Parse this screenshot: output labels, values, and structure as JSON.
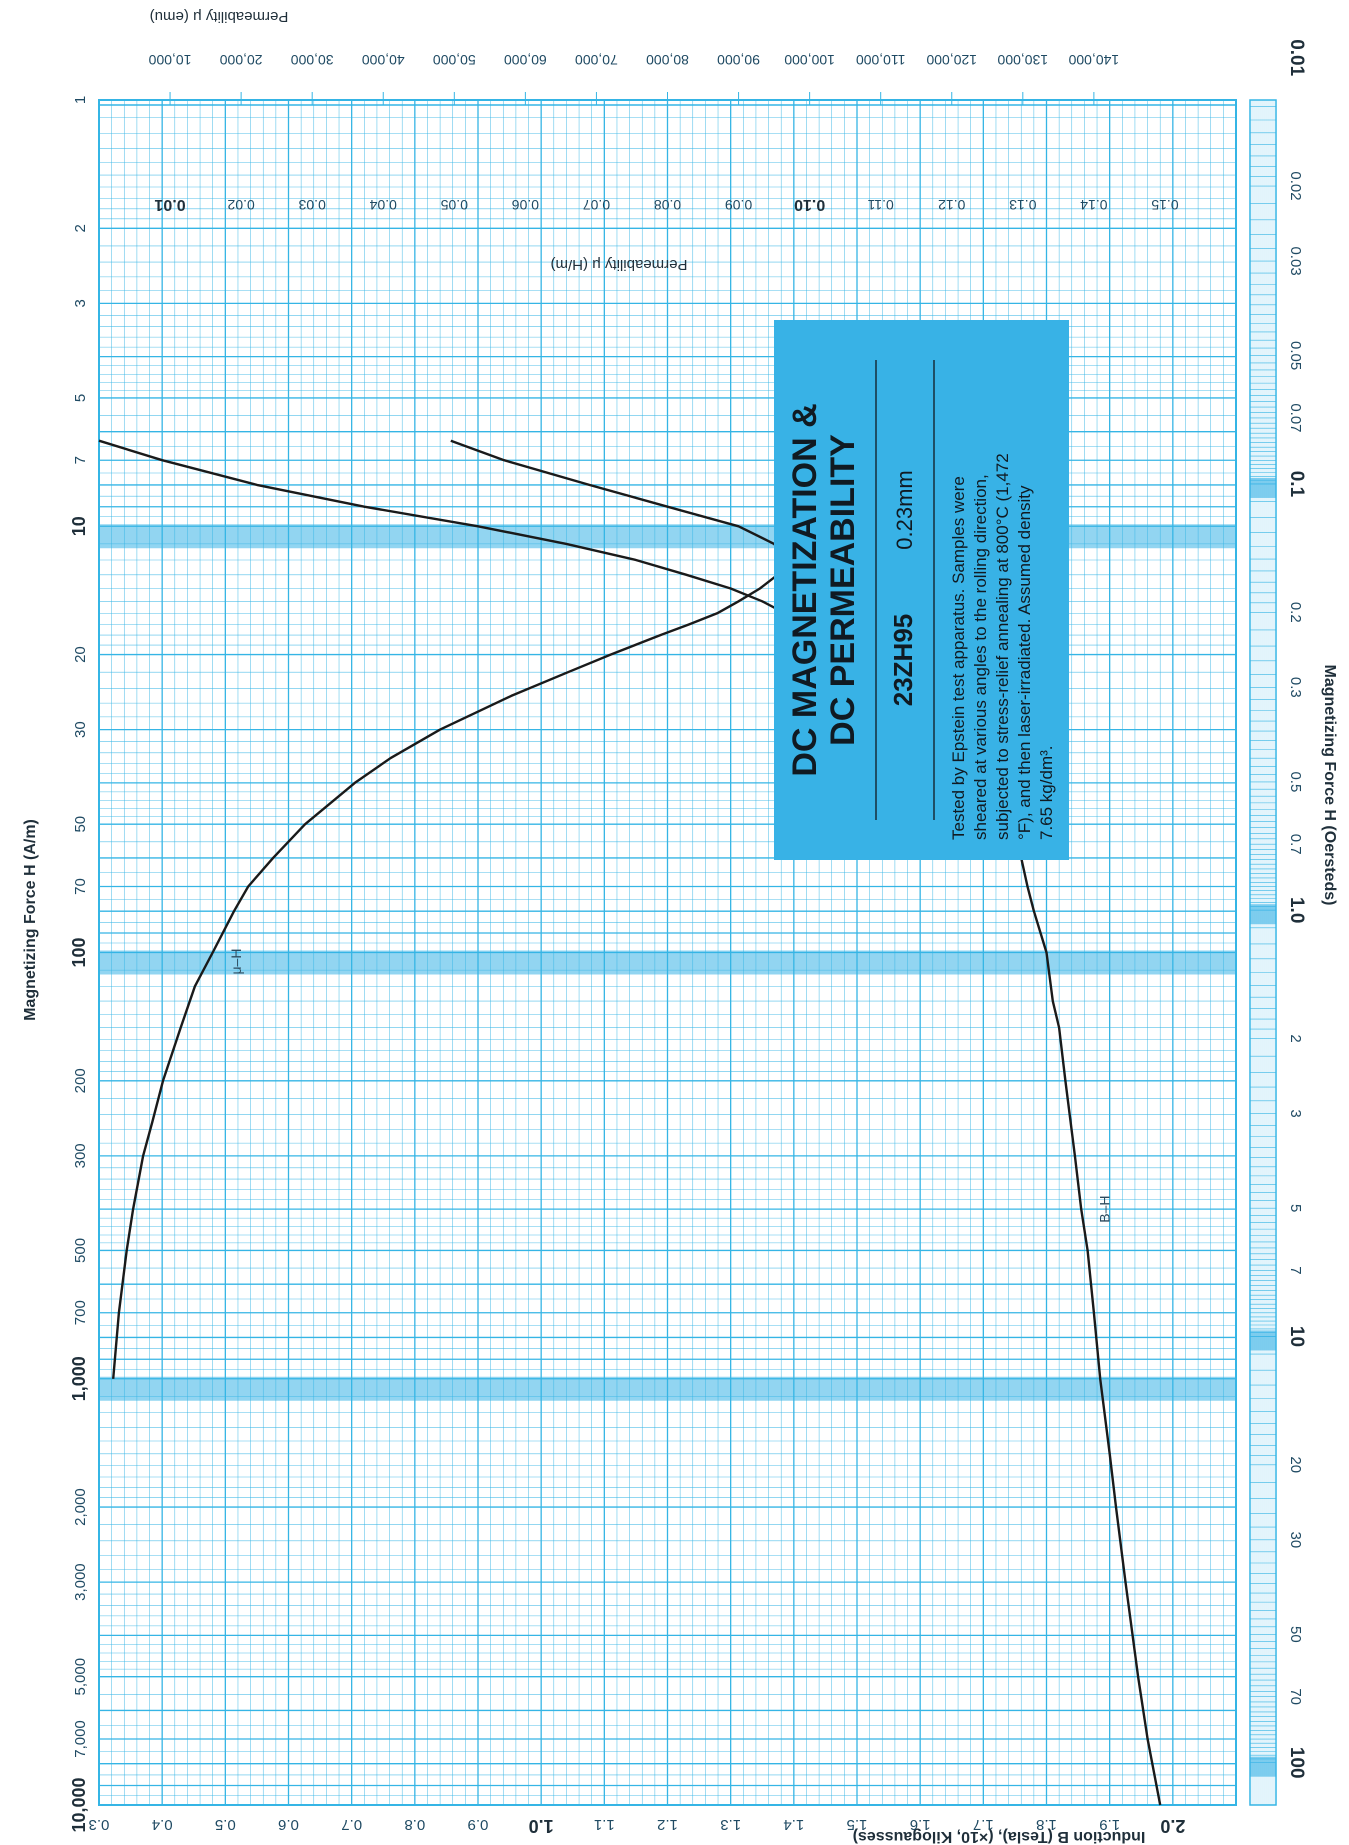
{
  "chart_data": {
    "type": "line",
    "orientation": "rotated-90-clockwise",
    "scales": {
      "x": "log",
      "y": "linear"
    },
    "colors": {
      "grid": "#35b5e5",
      "grid_background": "#ffffff",
      "info_box": "#38b2e6",
      "curve": "#1a1a1a",
      "band": "#38b2e6"
    },
    "xlabel": "Magnetizing Force H (A/m)",
    "xlabel_secondary": "Magnetizing Force H (Oersteds)",
    "ylabel": "Induction B (Tesla), (×10, Kilogausses)",
    "ylabel_secondary": "Permeability μ (H/m)",
    "ylabel_tertiary": "Permeability μ (emu)",
    "xlim": [
      1,
      10000
    ],
    "ylim": [
      0.3,
      2.1
    ],
    "x_ticks": [
      {
        "v": 1,
        "label": "1",
        "bold": false
      },
      {
        "v": 2,
        "label": "2",
        "bold": false
      },
      {
        "v": 3,
        "label": "3",
        "bold": false
      },
      {
        "v": 5,
        "label": "5",
        "bold": false
      },
      {
        "v": 7,
        "label": "7",
        "bold": false
      },
      {
        "v": 10,
        "label": "10",
        "bold": true
      },
      {
        "v": 20,
        "label": "20",
        "bold": false
      },
      {
        "v": 30,
        "label": "30",
        "bold": false
      },
      {
        "v": 50,
        "label": "50",
        "bold": false
      },
      {
        "v": 70,
        "label": "70",
        "bold": false
      },
      {
        "v": 100,
        "label": "100",
        "bold": true
      },
      {
        "v": 200,
        "label": "200",
        "bold": false
      },
      {
        "v": 300,
        "label": "300",
        "bold": false
      },
      {
        "v": 500,
        "label": "500",
        "bold": false
      },
      {
        "v": 700,
        "label": "700",
        "bold": false
      },
      {
        "v": 1000,
        "label": "1,000",
        "bold": true
      },
      {
        "v": 2000,
        "label": "2,000",
        "bold": false
      },
      {
        "v": 3000,
        "label": "3,000",
        "bold": false
      },
      {
        "v": 5000,
        "label": "5,000",
        "bold": false
      },
      {
        "v": 7000,
        "label": "7,000",
        "bold": false
      },
      {
        "v": 10000,
        "label": "10,000",
        "bold": true
      }
    ],
    "oersted_ticks": [
      {
        "v": 0.01,
        "label": "0.01",
        "bold": true
      },
      {
        "v": 0.02,
        "label": "0.02",
        "bold": false
      },
      {
        "v": 0.03,
        "label": "0.03",
        "bold": false
      },
      {
        "v": 0.05,
        "label": "0.05",
        "bold": false
      },
      {
        "v": 0.07,
        "label": "0.07",
        "bold": false
      },
      {
        "v": 0.1,
        "label": "0.1",
        "bold": true
      },
      {
        "v": 0.2,
        "label": "0.2",
        "bold": false
      },
      {
        "v": 0.3,
        "label": "0.3",
        "bold": false
      },
      {
        "v": 0.5,
        "label": "0.5",
        "bold": false
      },
      {
        "v": 0.7,
        "label": "0.7",
        "bold": false
      },
      {
        "v": 1.0,
        "label": "1.0",
        "bold": true
      },
      {
        "v": 2,
        "label": "2",
        "bold": false
      },
      {
        "v": 3,
        "label": "3",
        "bold": false
      },
      {
        "v": 5,
        "label": "5",
        "bold": false
      },
      {
        "v": 7,
        "label": "7",
        "bold": false
      },
      {
        "v": 10,
        "label": "10",
        "bold": true
      },
      {
        "v": 20,
        "label": "20",
        "bold": false
      },
      {
        "v": 30,
        "label": "30",
        "bold": false
      },
      {
        "v": 50,
        "label": "50",
        "bold": false
      },
      {
        "v": 70,
        "label": "70",
        "bold": false
      },
      {
        "v": 100,
        "label": "100",
        "bold": true
      }
    ],
    "b_ticks": [
      {
        "v": 2.0,
        "label": "2.0",
        "bold": true
      },
      {
        "v": 1.9,
        "label": "1.9",
        "bold": false
      },
      {
        "v": 1.8,
        "label": "1.8",
        "bold": false
      },
      {
        "v": 1.7,
        "label": "1.7",
        "bold": false
      },
      {
        "v": 1.6,
        "label": "1.6",
        "bold": false
      },
      {
        "v": 1.5,
        "label": "1.5",
        "bold": false
      },
      {
        "v": 1.4,
        "label": "1.4",
        "bold": false
      },
      {
        "v": 1.3,
        "label": "1.3",
        "bold": false
      },
      {
        "v": 1.2,
        "label": "1.2",
        "bold": false
      },
      {
        "v": 1.1,
        "label": "1.1",
        "bold": false
      },
      {
        "v": 1.0,
        "label": "1.0",
        "bold": true
      },
      {
        "v": 0.9,
        "label": "0.9",
        "bold": false
      },
      {
        "v": 0.8,
        "label": "0.8",
        "bold": false
      },
      {
        "v": 0.7,
        "label": "0.7",
        "bold": false
      },
      {
        "v": 0.6,
        "label": "0.6",
        "bold": false
      },
      {
        "v": 0.5,
        "label": "0.5",
        "bold": false
      },
      {
        "v": 0.4,
        "label": "0.4",
        "bold": false
      },
      {
        "v": 0.3,
        "label": "0.3",
        "bold": false
      }
    ],
    "mu_ticks": [
      {
        "v": 0.15,
        "label": "0.15",
        "bold": false
      },
      {
        "v": 0.14,
        "label": "0.14",
        "bold": false
      },
      {
        "v": 0.13,
        "label": "0.13",
        "bold": false
      },
      {
        "v": 0.12,
        "label": "0.12",
        "bold": false
      },
      {
        "v": 0.11,
        "label": "0.11",
        "bold": false
      },
      {
        "v": 0.1,
        "label": "0.10",
        "bold": true
      },
      {
        "v": 0.09,
        "label": "0.09",
        "bold": false
      },
      {
        "v": 0.08,
        "label": "0.08",
        "bold": false
      },
      {
        "v": 0.07,
        "label": "0.07",
        "bold": false
      },
      {
        "v": 0.06,
        "label": "0.06",
        "bold": false
      },
      {
        "v": 0.05,
        "label": "0.05",
        "bold": false
      },
      {
        "v": 0.04,
        "label": "0.04",
        "bold": false
      },
      {
        "v": 0.03,
        "label": "0.03",
        "bold": false
      },
      {
        "v": 0.02,
        "label": "0.02",
        "bold": false
      },
      {
        "v": 0.01,
        "label": "0.01",
        "bold": true
      }
    ],
    "emu_ticks": [
      {
        "v": 140000,
        "label": "140,000"
      },
      {
        "v": 130000,
        "label": "130,000"
      },
      {
        "v": 120000,
        "label": "120,000"
      },
      {
        "v": 110000,
        "label": "110,000"
      },
      {
        "v": 100000,
        "label": "100,000"
      },
      {
        "v": 90000,
        "label": "90,000"
      },
      {
        "v": 80000,
        "label": "80,000"
      },
      {
        "v": 70000,
        "label": "70,000"
      },
      {
        "v": 60000,
        "label": "60,000"
      },
      {
        "v": 50000,
        "label": "50,000"
      },
      {
        "v": 40000,
        "label": "40,000"
      },
      {
        "v": 30000,
        "label": "30,000"
      },
      {
        "v": 20000,
        "label": "20,000"
      },
      {
        "v": 10000,
        "label": "10,000"
      }
    ],
    "series": [
      {
        "name": "B–H",
        "axis": "B (Tesla)",
        "x": [
          6.3,
          7,
          8,
          9,
          10,
          11,
          12,
          13,
          14,
          15,
          17,
          20,
          23,
          26,
          30,
          35,
          40,
          50,
          60,
          70,
          80,
          100,
          130,
          150,
          200,
          300,
          400,
          500,
          700,
          1000,
          1500,
          2000,
          3000,
          5000,
          7000,
          10000
        ],
        "values": [
          0.3,
          0.4,
          0.55,
          0.72,
          0.9,
          1.04,
          1.15,
          1.23,
          1.3,
          1.35,
          1.42,
          1.5,
          1.56,
          1.6,
          1.64,
          1.68,
          1.71,
          1.74,
          1.76,
          1.77,
          1.78,
          1.8,
          1.81,
          1.82,
          1.83,
          1.845,
          1.855,
          1.865,
          1.875,
          1.885,
          1.9,
          1.91,
          1.925,
          1.945,
          1.96,
          1.98
        ]
      },
      {
        "name": "μ–H",
        "axis": "Permeability μ (H/m)",
        "x": [
          6.3,
          7,
          8,
          9,
          10,
          11,
          12,
          13,
          14,
          15,
          16,
          17,
          18,
          20,
          22,
          25,
          30,
          35,
          40,
          50,
          60,
          70,
          80,
          100,
          120,
          150,
          200,
          250,
          300,
          400,
          500,
          700,
          1000
        ],
        "values": [
          0.0495,
          0.057,
          0.069,
          0.08,
          0.09,
          0.095,
          0.097,
          0.0955,
          0.093,
          0.09,
          0.087,
          0.083,
          0.079,
          0.072,
          0.066,
          0.058,
          0.048,
          0.041,
          0.036,
          0.029,
          0.0245,
          0.021,
          0.019,
          0.016,
          0.0135,
          0.0115,
          0.009,
          0.0075,
          0.0062,
          0.0048,
          0.0039,
          0.0028,
          0.002
        ]
      }
    ],
    "curve_labels": {
      "bh": "B–H",
      "muh": "μ–H"
    },
    "grid": true
  },
  "info_box": {
    "title_line1": "DC MAGNETIZATION &",
    "title_line2": "DC PERMEABILITY",
    "grade": "23ZH95",
    "thickness": "0.23mm",
    "description_lines": [
      "Tested by Epstein test apparatus. Samples were",
      "sheared at various angles to the rolling direction,",
      "subjected to stress-relief annealing at 800°C (1,472",
      "°F), and then laser-irradiated. Assumed density",
      "7.65 kg/dm³."
    ]
  }
}
